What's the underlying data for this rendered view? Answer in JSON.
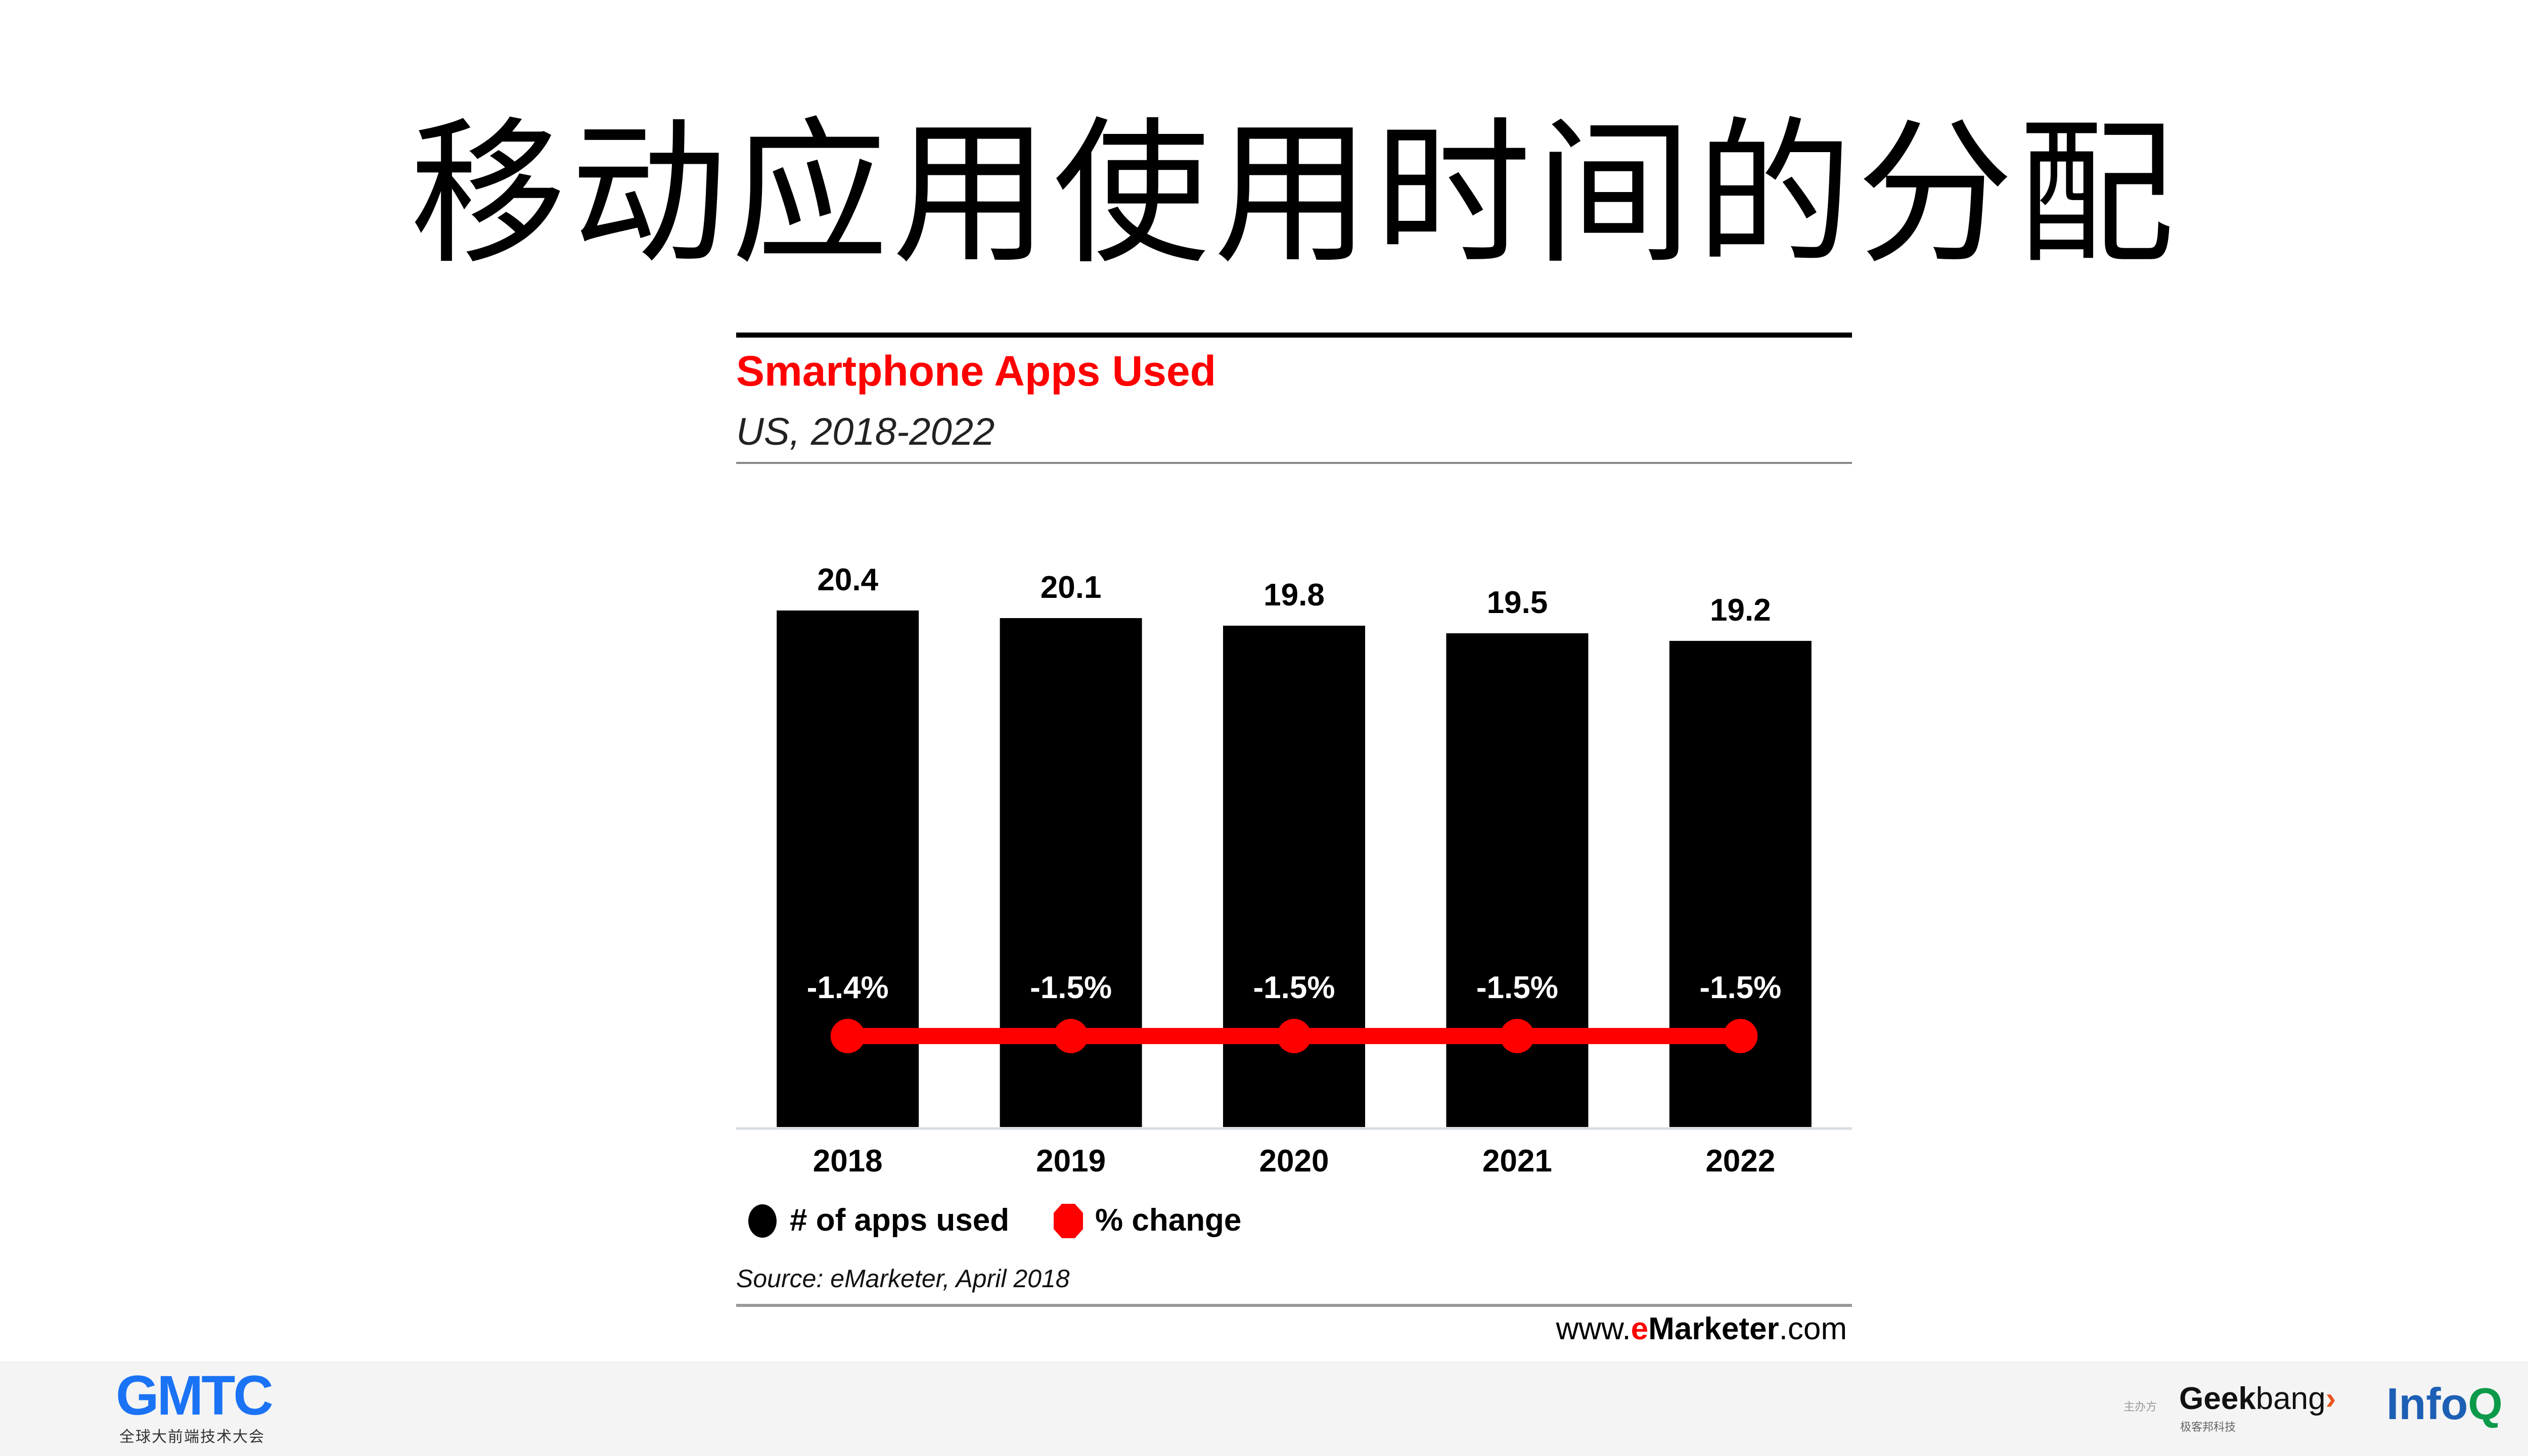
{
  "slide": {
    "title": "移动应用使用时间的分配"
  },
  "chart_data": {
    "type": "bar",
    "title": "Smartphone Apps Used",
    "subtitle": "US, 2018-2022",
    "categories": [
      "2018",
      "2019",
      "2020",
      "2021",
      "2022"
    ],
    "series": [
      {
        "name": "# of apps used",
        "type": "bar",
        "color": "#000000",
        "values": [
          20.4,
          20.1,
          19.8,
          19.5,
          19.2
        ],
        "labels": [
          "20.4",
          "20.1",
          "19.8",
          "19.5",
          "19.2"
        ]
      },
      {
        "name": "% change",
        "type": "line",
        "color": "#ff0000",
        "values": [
          -1.4,
          -1.5,
          -1.5,
          -1.5,
          -1.5
        ],
        "labels": [
          "-1.4%",
          "-1.5%",
          "-1.5%",
          "-1.5%",
          "-1.5%"
        ]
      }
    ],
    "ylim": [
      0,
      20.4
    ],
    "grid": false,
    "legend_position": "bottom-left",
    "source": "Source: eMarketer, April 2018",
    "brand": {
      "prefix": "www.",
      "highlight": "e",
      "name": "Marketer",
      "suffix": ".com"
    }
  },
  "footer": {
    "gmtc_logo": "GMTC",
    "gmtc_subtitle": "全球大前端技术大会",
    "host_label": "主办方",
    "geekbang": {
      "geek": "Geek",
      "bang": "bang",
      "arrow": "›",
      "subtitle": "极客邦科技"
    },
    "infoq": {
      "info": "Info",
      "q": "Q"
    },
    "colors": {
      "gmtc": "#1a73f5",
      "infoq": "#1d5fb4",
      "infoq_q": "#0c9a4a",
      "geekbang_arrow": "#e8541e"
    }
  }
}
